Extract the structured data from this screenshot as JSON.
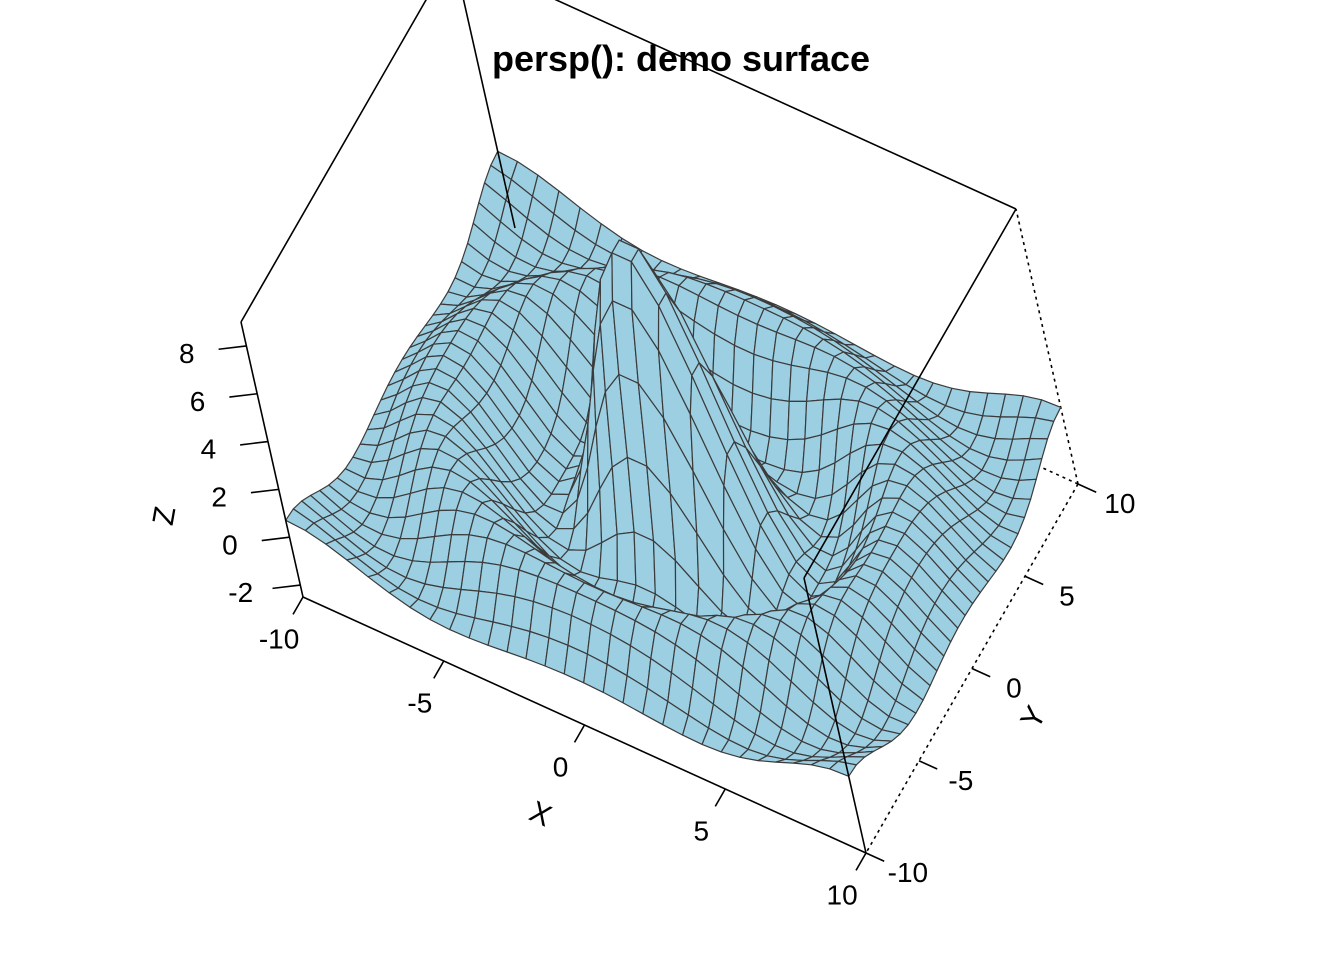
{
  "chart_data": {
    "type": "surface",
    "title": "persp(): demo surface",
    "xlabel": "X",
    "ylabel": "Y",
    "zlabel": "Z",
    "xlim": [
      -10,
      10
    ],
    "ylim": [
      -10,
      10
    ],
    "zlim": [
      -2.5,
      9
    ],
    "x_ticks": [
      -10,
      -5,
      0,
      5,
      10
    ],
    "y_ticks": [
      -10,
      -5,
      0,
      5,
      10
    ],
    "z_ticks": [
      -2,
      0,
      2,
      4,
      6,
      8
    ],
    "x_tick_labels": [
      "-10",
      "-5",
      "0",
      "5",
      "10"
    ],
    "y_tick_labels": [
      "-10",
      "-5",
      "0",
      "5",
      "10"
    ],
    "z_tick_labels": [
      "-2",
      "0",
      "2",
      "4",
      "6",
      "8"
    ],
    "function": "z = 10 * sin(r) / r, r = sqrt(x^2 + y^2)",
    "grid_points": 30,
    "view": {
      "theta": 30,
      "phi": 30
    },
    "surface_color": "#9ccfe2",
    "edge_color": "#3b3b3b",
    "box": true
  }
}
